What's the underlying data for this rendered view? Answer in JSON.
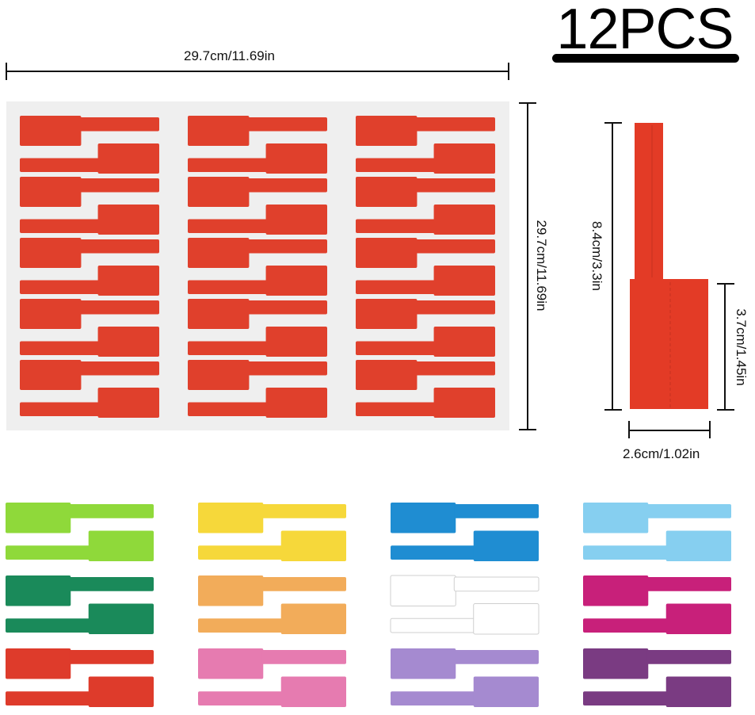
{
  "header": {
    "quantity_label": "12PCS"
  },
  "dimensions": {
    "sheet_width": "29.7cm/11.69in",
    "sheet_height": "29.7cm/11.69in",
    "tag_length": "8.4cm/3.3in",
    "tag_head_height": "3.7cm/1.45in",
    "tag_width": "2.6cm/1.02in"
  },
  "colors": {
    "sheet_red": "#e0402c",
    "green": "#8fd93a",
    "dark_green": "#1a8a5a",
    "red": "#de3b2b",
    "yellow": "#f6d83a",
    "orange": "#f2ac5a",
    "pink": "#e67bb0",
    "blue": "#1f8dd2",
    "white": "#ffffff",
    "lavender": "#a58ad0",
    "sky_blue": "#86cff0",
    "magenta": "#c8207a",
    "purple": "#7a3b82"
  },
  "swatch_grid": [
    [
      "green",
      "yellow",
      "blue",
      "sky_blue"
    ],
    [
      "dark_green",
      "orange",
      "white",
      "magenta"
    ],
    [
      "red",
      "pink",
      "lavender",
      "purple"
    ]
  ]
}
